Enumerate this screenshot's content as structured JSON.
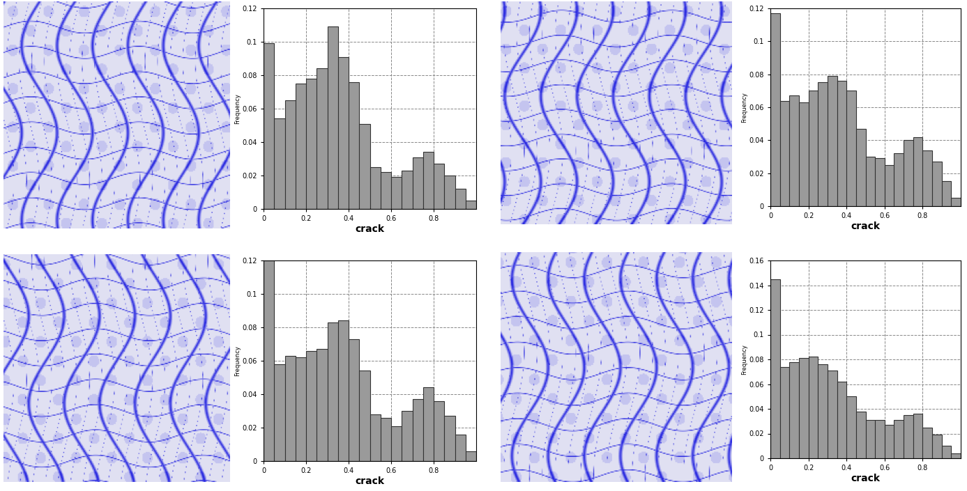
{
  "chart_data": [
    {
      "type": "histogram",
      "xlabel": "crack",
      "ylabel": "Frequency",
      "bins": [
        0,
        0.05,
        0.1,
        0.15,
        0.2,
        0.25,
        0.3,
        0.35,
        0.4,
        0.45,
        0.5,
        0.55,
        0.6,
        0.65,
        0.7,
        0.75,
        0.8,
        0.85,
        0.9,
        0.95,
        1.0
      ],
      "values": [
        0.099,
        0.054,
        0.065,
        0.075,
        0.078,
        0.084,
        0.109,
        0.091,
        0.076,
        0.051,
        0.025,
        0.022,
        0.019,
        0.023,
        0.031,
        0.034,
        0.027,
        0.02,
        0.012,
        0.005
      ],
      "color": "#9a9a9a",
      "xlim": [
        0,
        1.0
      ],
      "xticks": [
        0,
        0.2,
        0.4,
        0.6,
        0.8
      ],
      "ylim": [
        0,
        0.12
      ],
      "yticks": [
        0,
        0.02,
        0.04,
        0.06,
        0.08,
        0.1,
        0.12
      ],
      "grid": true
    },
    {
      "type": "histogram",
      "xlabel": "crack",
      "ylabel": "Frequency",
      "bins": [
        0,
        0.05,
        0.1,
        0.15,
        0.2,
        0.25,
        0.3,
        0.35,
        0.4,
        0.45,
        0.5,
        0.55,
        0.6,
        0.65,
        0.7,
        0.75,
        0.8,
        0.85,
        0.9,
        0.95,
        1.0
      ],
      "values": [
        0.117,
        0.064,
        0.067,
        0.063,
        0.07,
        0.075,
        0.079,
        0.076,
        0.07,
        0.047,
        0.03,
        0.029,
        0.025,
        0.032,
        0.04,
        0.042,
        0.034,
        0.027,
        0.015,
        0.005
      ],
      "color": "#9a9a9a",
      "xlim": [
        0,
        1.0
      ],
      "xticks": [
        0,
        0.2,
        0.4,
        0.6,
        0.8
      ],
      "ylim": [
        0,
        0.12
      ],
      "yticks": [
        0,
        0.02,
        0.04,
        0.06,
        0.08,
        0.1,
        0.12
      ],
      "grid": true
    },
    {
      "type": "histogram",
      "xlabel": "crack",
      "ylabel": "Frequency",
      "bins": [
        0,
        0.05,
        0.1,
        0.15,
        0.2,
        0.25,
        0.3,
        0.35,
        0.4,
        0.45,
        0.5,
        0.55,
        0.6,
        0.65,
        0.7,
        0.75,
        0.8,
        0.85,
        0.9,
        0.95,
        1.0
      ],
      "values": [
        0.12,
        0.058,
        0.063,
        0.062,
        0.066,
        0.067,
        0.083,
        0.084,
        0.073,
        0.054,
        0.028,
        0.026,
        0.021,
        0.03,
        0.037,
        0.044,
        0.036,
        0.027,
        0.016,
        0.006
      ],
      "color": "#9a9a9a",
      "xlim": [
        0,
        1.0
      ],
      "xticks": [
        0,
        0.2,
        0.4,
        0.6,
        0.8
      ],
      "ylim": [
        0,
        0.12
      ],
      "yticks": [
        0,
        0.02,
        0.04,
        0.06,
        0.08,
        0.1,
        0.12
      ],
      "grid": true
    },
    {
      "type": "histogram",
      "xlabel": "crack",
      "ylabel": "Frequency",
      "bins": [
        0,
        0.05,
        0.1,
        0.15,
        0.2,
        0.25,
        0.3,
        0.35,
        0.4,
        0.45,
        0.5,
        0.55,
        0.6,
        0.65,
        0.7,
        0.75,
        0.8,
        0.85,
        0.9,
        0.95,
        1.0
      ],
      "values": [
        0.145,
        0.074,
        0.078,
        0.081,
        0.082,
        0.076,
        0.071,
        0.062,
        0.05,
        0.038,
        0.031,
        0.031,
        0.027,
        0.031,
        0.035,
        0.036,
        0.025,
        0.019,
        0.01,
        0.004
      ],
      "color": "#9a9a9a",
      "xlim": [
        0,
        1.0
      ],
      "xticks": [
        0,
        0.2,
        0.4,
        0.6,
        0.8
      ],
      "ylim": [
        0,
        0.16
      ],
      "yticks": [
        0,
        0.02,
        0.04,
        0.06,
        0.08,
        0.1,
        0.12,
        0.14,
        0.16
      ],
      "grid": true
    }
  ]
}
